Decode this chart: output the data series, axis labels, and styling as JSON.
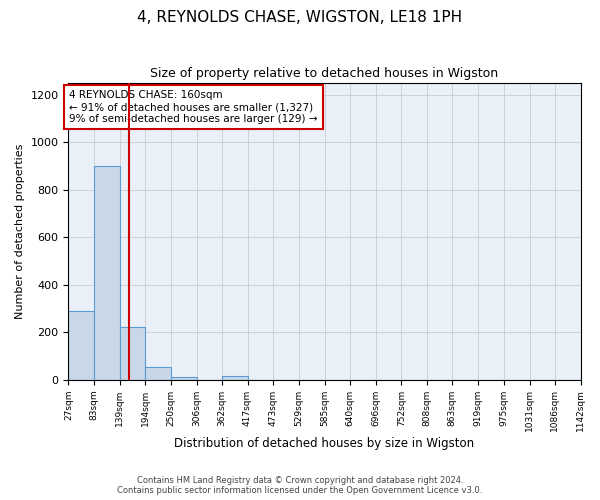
{
  "title": "4, REYNOLDS CHASE, WIGSTON, LE18 1PH",
  "subtitle": "Size of property relative to detached houses in Wigston",
  "xlabel": "Distribution of detached houses by size in Wigston",
  "ylabel": "Number of detached properties",
  "bar_edges": [
    27,
    83,
    139,
    194,
    250,
    306,
    362,
    417,
    473,
    529,
    585,
    640,
    696,
    752,
    808,
    863,
    919,
    975,
    1031,
    1086,
    1142
  ],
  "bar_heights": [
    290,
    900,
    220,
    55,
    10,
    0,
    15,
    0,
    0,
    0,
    0,
    0,
    0,
    0,
    0,
    0,
    0,
    0,
    0,
    0
  ],
  "bar_color": "#c8d8e8",
  "bar_edge_color": "#5b9bd5",
  "property_line_x": 160,
  "property_line_color": "#cc0000",
  "annotation_text": "4 REYNOLDS CHASE: 160sqm\n← 91% of detached houses are smaller (1,327)\n9% of semi-detached houses are larger (129) →",
  "annotation_box_color": "#cc0000",
  "ylim": [
    0,
    1250
  ],
  "yticks": [
    0,
    200,
    400,
    600,
    800,
    1000,
    1200
  ],
  "tick_labels": [
    "27sqm",
    "83sqm",
    "139sqm",
    "194sqm",
    "250sqm",
    "306sqm",
    "362sqm",
    "417sqm",
    "473sqm",
    "529sqm",
    "585sqm",
    "640sqm",
    "696sqm",
    "752sqm",
    "808sqm",
    "863sqm",
    "919sqm",
    "975sqm",
    "1031sqm",
    "1086sqm",
    "1142sqm"
  ],
  "footer_line1": "Contains HM Land Registry data © Crown copyright and database right 2024.",
  "footer_line2": "Contains public sector information licensed under the Open Government Licence v3.0.",
  "bg_color": "#ffffff",
  "grid_color": "#cccccc",
  "ax_bg_color": "#eaf0f8"
}
